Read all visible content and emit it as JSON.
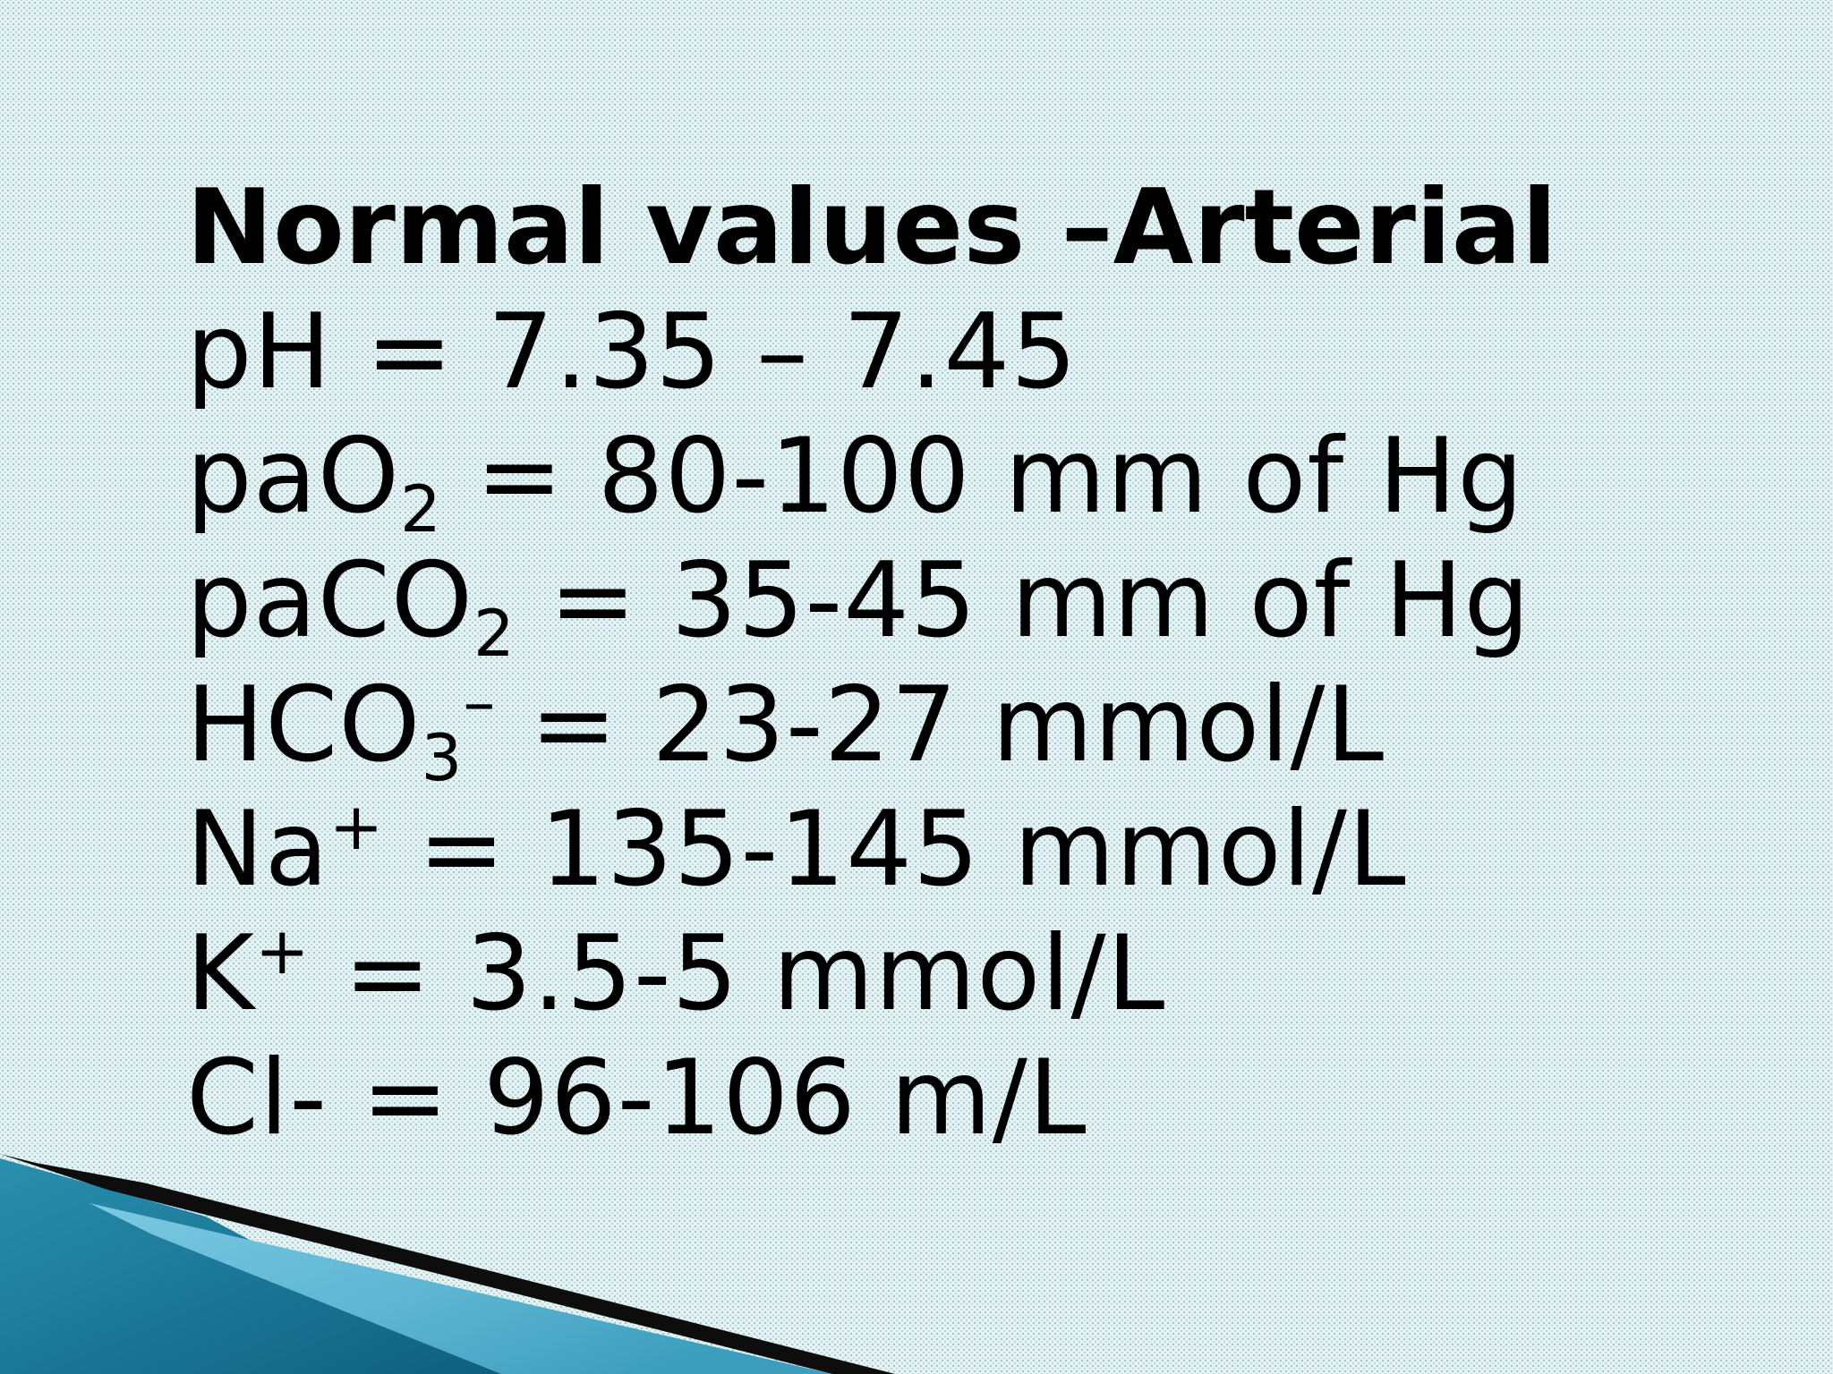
{
  "slide": {
    "title": "Normal values –Arterial",
    "lines": {
      "ph": {
        "label": "pH",
        "value": "= 7.35 – 7.45"
      },
      "pao2": {
        "label": "paO",
        "sub": "2",
        "value": "= 80-100 mm of Hg"
      },
      "paco2": {
        "label": "paCO",
        "sub": "2",
        "value": "= 35-45 mm of Hg"
      },
      "hco3": {
        "label": "HCO",
        "sub": "3",
        "sup": "–",
        "value": "= 23-27 mmol/L"
      },
      "na": {
        "label": "Na",
        "sup": "+",
        "value": "= 135-145 mmol/L"
      },
      "k": {
        "label": "K",
        "sup": "+",
        "value": "= 3.5-5 mmol/L"
      },
      "cl": {
        "label": "Cl-",
        "value": "= 96-106 m/L"
      }
    }
  },
  "colors": {
    "background": "#e9f4f5",
    "ribbon_dark": "#0d0d0d",
    "ribbon_teal": "#1c7f9c",
    "ribbon_light": "#5fb6d3"
  }
}
